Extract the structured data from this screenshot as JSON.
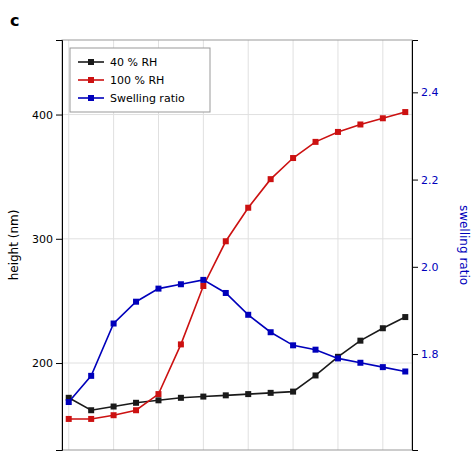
{
  "chart_data": {
    "type": "line",
    "title": "c",
    "y_label": "height (nm)",
    "y2_label": "swelling ratio",
    "x": [
      0,
      1,
      2,
      3,
      4,
      5,
      6,
      7,
      8,
      9,
      10,
      11,
      12,
      13,
      14,
      15
    ],
    "xlim": [
      -0.3,
      15.3
    ],
    "xticks": [
      0,
      2,
      4,
      6,
      8,
      10,
      12,
      14
    ],
    "ylim": [
      130,
      460
    ],
    "yticks": [
      200,
      300,
      400
    ],
    "y2lim": [
      1.58,
      2.52
    ],
    "y2ticks": [
      1.8,
      {
        "value": 2.0,
        "label": "2.0"
      },
      2.2,
      2.4
    ],
    "series": [
      {
        "name": "40 % RH",
        "color": "#1a1a1a",
        "axis": "y",
        "marker": "square",
        "values": [
          172,
          162,
          165,
          168,
          170,
          172,
          173,
          174,
          175,
          176,
          177,
          190,
          205,
          218,
          228,
          237
        ]
      },
      {
        "name": "100 % RH",
        "color": "#cc1111",
        "axis": "y",
        "marker": "square",
        "values": [
          155,
          155,
          158,
          162,
          175,
          215,
          262,
          298,
          325,
          348,
          365,
          378,
          386,
          392,
          397,
          402
        ]
      },
      {
        "name": "Swelling ratio",
        "color": "#0000bb",
        "axis": "y2",
        "marker": "square",
        "values": [
          1.69,
          1.75,
          1.87,
          1.92,
          1.95,
          1.96,
          1.97,
          1.94,
          1.89,
          1.85,
          1.82,
          1.81,
          1.79,
          1.78,
          1.77,
          1.76
        ]
      }
    ],
    "grid": true,
    "legend": "upper-left",
    "tick_labels": "y"
  }
}
